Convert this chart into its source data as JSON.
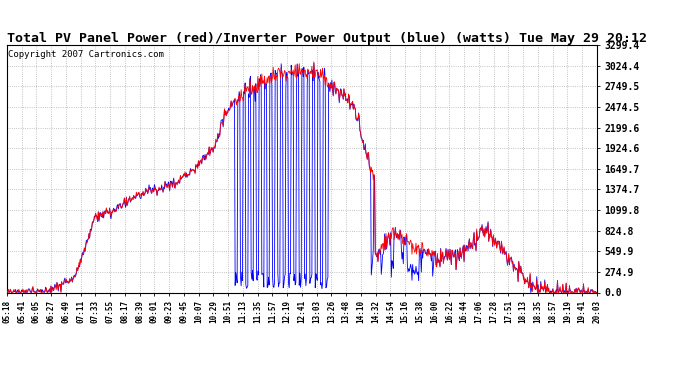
{
  "title": "Total PV Panel Power (red)/Inverter Power Output (blue) (watts) Tue May 29 20:12",
  "copyright_text": "Copyright 2007 Cartronics.com",
  "y_ticks": [
    0.0,
    274.9,
    549.9,
    824.8,
    1099.8,
    1374.7,
    1649.7,
    1924.6,
    2199.6,
    2474.5,
    2749.5,
    3024.4,
    3299.4
  ],
  "x_labels": [
    "05:18",
    "05:41",
    "06:05",
    "06:27",
    "06:49",
    "07:11",
    "07:33",
    "07:55",
    "08:17",
    "08:39",
    "09:01",
    "09:23",
    "09:45",
    "10:07",
    "10:29",
    "10:51",
    "11:13",
    "11:35",
    "11:57",
    "12:19",
    "12:41",
    "13:03",
    "13:26",
    "13:48",
    "14:10",
    "14:32",
    "14:54",
    "15:16",
    "15:38",
    "16:00",
    "16:22",
    "16:44",
    "17:06",
    "17:28",
    "17:51",
    "18:13",
    "18:35",
    "18:57",
    "19:19",
    "19:41",
    "20:03"
  ],
  "pv_color": "#ff0000",
  "inv_color": "#0000ff",
  "bg_color": "#ffffff",
  "grid_color": "#b0b0b0",
  "title_fontsize": 9.5,
  "copyright_fontsize": 6.5,
  "ymin": 0.0,
  "ymax": 3299.4
}
